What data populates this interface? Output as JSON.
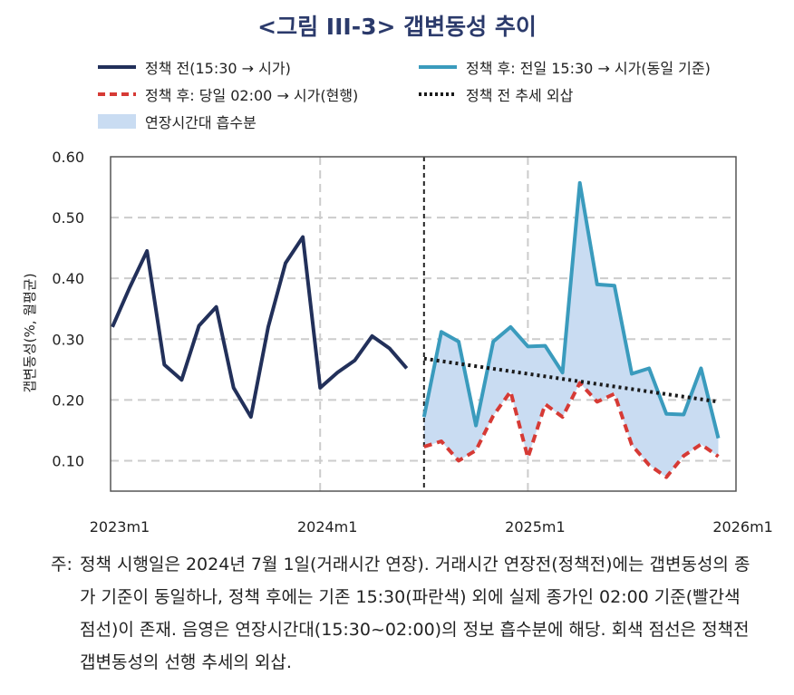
{
  "title": "<그림 III-3> 갭변동성 추이",
  "colors": {
    "pre": "#22305a",
    "post_1530": "#3a9bbd",
    "post_0200": "#d63a35",
    "trend": "#1a1a1a",
    "fill": "#c9dcf2",
    "grid": "#cccccc"
  },
  "legend": [
    {
      "key": "pre",
      "label": "정책 전(15:30 → 시가)",
      "style": "solid"
    },
    {
      "key": "post_1530",
      "label": "정책 후: 전일 15:30 → 시가(동일 기준)",
      "style": "solid"
    },
    {
      "key": "post_0200",
      "label": "정책 후: 당일 02:00 → 시가(현행)",
      "style": "dashed"
    },
    {
      "key": "trend",
      "label": "정책 전 추세 외삽",
      "style": "dotted"
    },
    {
      "key": "fill",
      "label": "연장시간대 흡수분",
      "style": "area"
    }
  ],
  "chart_data": {
    "type": "line",
    "ylabel": "갭변동성(%, 월평균)",
    "ylim": [
      0.05,
      0.6
    ],
    "y_ticks": [
      "0.10",
      "0.20",
      "0.30",
      "0.40",
      "0.50",
      "0.60"
    ],
    "x_ticks": [
      "2023m1",
      "2024m1",
      "2025m1",
      "2026m1"
    ],
    "policy_date": "2024m7",
    "series": [
      {
        "name": "정책 전(15:30 → 시가)",
        "x": [
          "2023m1",
          "2023m2",
          "2023m3",
          "2023m4",
          "2023m5",
          "2023m6",
          "2023m7",
          "2023m8",
          "2023m9",
          "2023m10",
          "2023m11",
          "2023m12",
          "2024m1",
          "2024m2",
          "2024m3",
          "2024m4",
          "2024m5",
          "2024m6"
        ],
        "values": [
          0.32,
          0.385,
          0.445,
          0.258,
          0.233,
          0.322,
          0.353,
          0.22,
          0.172,
          0.32,
          0.425,
          0.468,
          0.22,
          0.245,
          0.265,
          0.305,
          0.285,
          0.252
        ]
      },
      {
        "name": "정책 후: 전일 15:30 → 시가(동일 기준)",
        "x": [
          "2024m7",
          "2024m8",
          "2024m9",
          "2024m10",
          "2024m11",
          "2024m12",
          "2025m1",
          "2025m2",
          "2025m3",
          "2025m4",
          "2025m5",
          "2025m6",
          "2025m7",
          "2025m8",
          "2025m9",
          "2025m10",
          "2025m11",
          "2025m12"
        ],
        "values": [
          0.172,
          0.312,
          0.296,
          0.158,
          0.296,
          0.32,
          0.288,
          0.289,
          0.245,
          0.557,
          0.39,
          0.388,
          0.243,
          0.252,
          0.177,
          0.176,
          0.252,
          0.137
        ]
      },
      {
        "name": "정책 후: 당일 02:00 → 시가(현행)",
        "x": [
          "2024m7",
          "2024m8",
          "2024m9",
          "2024m10",
          "2024m11",
          "2024m12",
          "2025m1",
          "2025m2",
          "2025m3",
          "2025m4",
          "2025m5",
          "2025m6",
          "2025m7",
          "2025m8",
          "2025m9",
          "2025m10",
          "2025m11",
          "2025m12"
        ],
        "values": [
          0.123,
          0.132,
          0.1,
          0.117,
          0.174,
          0.214,
          0.105,
          0.193,
          0.172,
          0.228,
          0.197,
          0.21,
          0.126,
          0.093,
          0.073,
          0.108,
          0.127,
          0.107
        ]
      },
      {
        "name": "정책 전 추세 외삽",
        "x": [
          "2024m7",
          "2025m12"
        ],
        "values": [
          0.268,
          0.197
        ]
      }
    ]
  },
  "note": {
    "prefix": "주:",
    "text": "정책 시행일은 2024년 7월 1일(거래시간 연장). 거래시간 연장전(정책전)에는 갭변동성의 종가 기준이 동일하나, 정책 후에는 기존 15:30(파란색) 외에 실제 종가인 02:00 기준(빨간색 점선)이 존재. 음영은 연장시간대(15:30~02:00)의 정보 흡수분에 해당. 회색 점선은 정책전 갭변동성의 선행 추세의 외삽."
  }
}
